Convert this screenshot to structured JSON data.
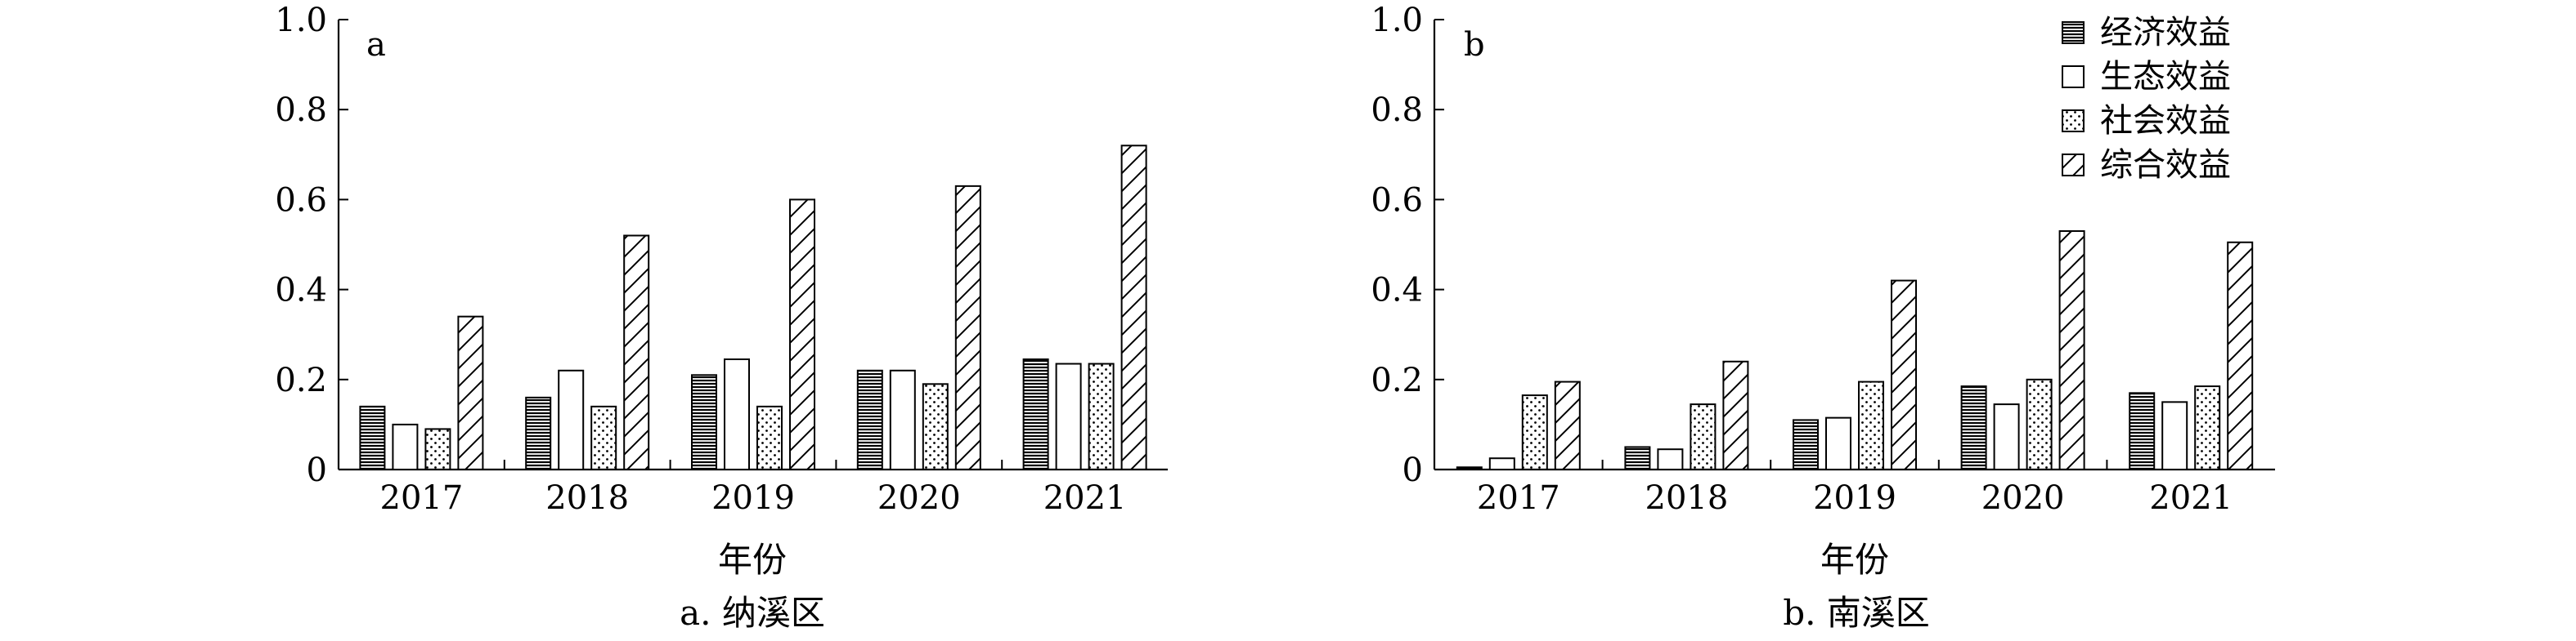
{
  "chart_data": [
    {
      "type": "bar",
      "panel_label": "a",
      "caption": "a. 纳溪区",
      "xlabel": "年份",
      "ylabel": "",
      "ylim": [
        0,
        1.0
      ],
      "yticks": [
        "0",
        "0.2",
        "0.4",
        "0.6",
        "0.8",
        "1.0"
      ],
      "categories": [
        "2017",
        "2018",
        "2019",
        "2020",
        "2021"
      ],
      "series": [
        {
          "name": "经济效益",
          "values": [
            0.14,
            0.16,
            0.21,
            0.22,
            0.245
          ]
        },
        {
          "name": "生态效益",
          "values": [
            0.1,
            0.22,
            0.245,
            0.22,
            0.235
          ]
        },
        {
          "name": "社会效益",
          "values": [
            0.09,
            0.14,
            0.14,
            0.19,
            0.235
          ]
        },
        {
          "name": "综合效益",
          "values": [
            0.34,
            0.52,
            0.6,
            0.63,
            0.72
          ]
        }
      ],
      "legend": "none",
      "grid": false
    },
    {
      "type": "bar",
      "panel_label": "b",
      "caption": "b. 南溪区",
      "xlabel": "年份",
      "ylabel": "",
      "ylim": [
        0,
        1.0
      ],
      "yticks": [
        "0",
        "0.2",
        "0.4",
        "0.6",
        "0.8",
        "1.0"
      ],
      "categories": [
        "2017",
        "2018",
        "2019",
        "2020",
        "2021"
      ],
      "series": [
        {
          "name": "经济效益",
          "values": [
            0.005,
            0.05,
            0.11,
            0.185,
            0.17
          ]
        },
        {
          "name": "生态效益",
          "values": [
            0.025,
            0.045,
            0.115,
            0.145,
            0.15
          ]
        },
        {
          "name": "社会效益",
          "values": [
            0.165,
            0.145,
            0.195,
            0.2,
            0.185
          ]
        },
        {
          "name": "综合效益",
          "values": [
            0.195,
            0.24,
            0.42,
            0.53,
            0.505
          ]
        }
      ],
      "legend": "top-right",
      "grid": false
    }
  ],
  "series_patterns": [
    "hlines",
    "none",
    "dots",
    "diagonal"
  ]
}
